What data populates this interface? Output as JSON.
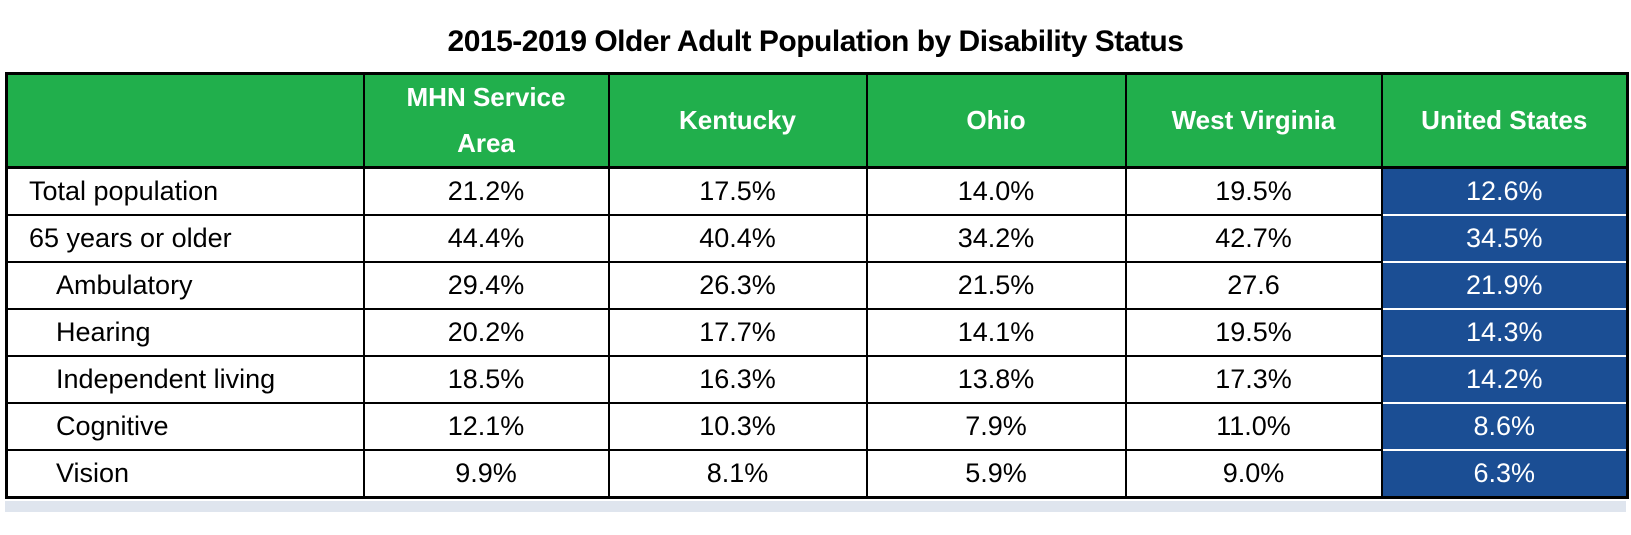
{
  "title": "2015-2019 Older Adult Population by Disability Status",
  "table": {
    "columns": [
      "",
      "MHN Service Area",
      "Kentucky",
      "Ohio",
      "West Virginia",
      "United States"
    ],
    "rows": [
      {
        "label": "Total population",
        "indent": false,
        "values": [
          "21.2%",
          "17.5%",
          "14.0%",
          "19.5%",
          "12.6%"
        ]
      },
      {
        "label": "65 years or older",
        "indent": false,
        "values": [
          "44.4%",
          "40.4%",
          "34.2%",
          "42.7%",
          "34.5%"
        ]
      },
      {
        "label": "Ambulatory",
        "indent": true,
        "values": [
          "29.4%",
          "26.3%",
          "21.5%",
          "27.6",
          "21.9%"
        ]
      },
      {
        "label": "Hearing",
        "indent": true,
        "values": [
          "20.2%",
          "17.7%",
          "14.1%",
          "19.5%",
          "14.3%"
        ]
      },
      {
        "label": "Independent living",
        "indent": true,
        "values": [
          "18.5%",
          "16.3%",
          "13.8%",
          "17.3%",
          "14.2%"
        ]
      },
      {
        "label": "Cognitive",
        "indent": true,
        "values": [
          "12.1%",
          "10.3%",
          "7.9%",
          "11.0%",
          "8.6%"
        ]
      },
      {
        "label": "Vision",
        "indent": true,
        "values": [
          "9.9%",
          "8.1%",
          "5.9%",
          "9.0%",
          "6.3%"
        ]
      }
    ]
  },
  "colors": {
    "header_green": "#21AF4C",
    "us_column_blue": "#1B4E94",
    "border_black": "#000000",
    "header_text_white": "#FFFFFF"
  },
  "chart_data": {
    "type": "table",
    "title": "2015-2019 Older Adult Population by Disability Status",
    "categories": [
      "Total population",
      "65 years or older",
      "Ambulatory",
      "Hearing",
      "Independent living",
      "Cognitive",
      "Vision"
    ],
    "series": [
      {
        "name": "MHN Service Area",
        "values": [
          21.2,
          44.4,
          29.4,
          20.2,
          18.5,
          12.1,
          9.9
        ]
      },
      {
        "name": "Kentucky",
        "values": [
          17.5,
          40.4,
          26.3,
          17.7,
          16.3,
          10.3,
          8.1
        ]
      },
      {
        "name": "Ohio",
        "values": [
          14.0,
          34.2,
          21.5,
          14.1,
          13.8,
          7.9,
          5.9
        ]
      },
      {
        "name": "West Virginia",
        "values": [
          19.5,
          42.7,
          27.6,
          19.5,
          17.3,
          11.0,
          9.0
        ]
      },
      {
        "name": "United States",
        "values": [
          12.6,
          34.5,
          21.9,
          14.3,
          14.2,
          8.6,
          6.3
        ]
      }
    ],
    "unit": "percent",
    "notes": "West Virginia Ambulatory cell displayed without percent sign (27.6); United States column highlighted blue with white text; header row green with white text"
  }
}
